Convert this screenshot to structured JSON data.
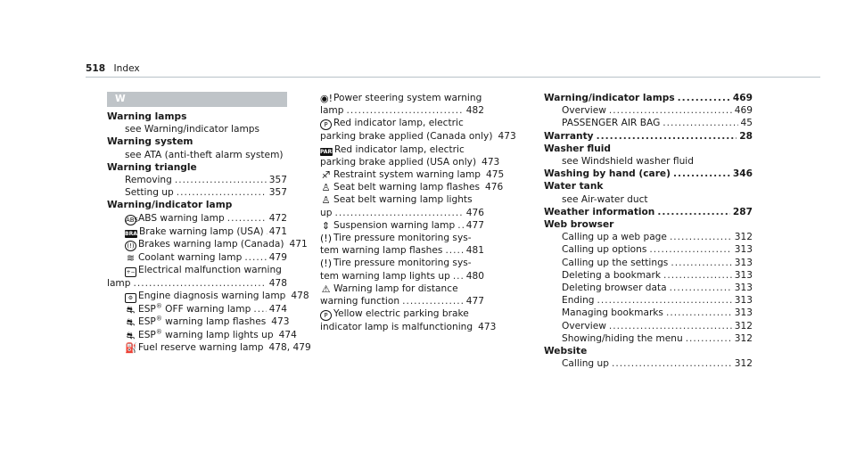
{
  "page": {
    "number": "518",
    "section": "Index"
  },
  "letter": "W",
  "col1": [
    {
      "kind": "head",
      "text": "Warning lamps"
    },
    {
      "kind": "see",
      "text": "see Warning/indicator lamps"
    },
    {
      "kind": "head",
      "text": "Warning system"
    },
    {
      "kind": "see",
      "text": "see ATA (anti-theft alarm system)"
    },
    {
      "kind": "head",
      "text": "Warning triangle"
    },
    {
      "kind": "sub",
      "text": "Removing",
      "page": "357"
    },
    {
      "kind": "sub",
      "text": "Setting up",
      "page": "357"
    },
    {
      "kind": "head",
      "text": "Warning/indicator lamp"
    },
    {
      "kind": "sub",
      "icon": "abs-warning-icon",
      "iconText": "ABS",
      "text": "ABS warning lamp",
      "page": "472"
    },
    {
      "kind": "sub",
      "icon": "brake-warning-icon",
      "iconText": "BRAKE",
      "text": "Brake warning lamp (USA)",
      "page": "471"
    },
    {
      "kind": "sub",
      "icon": "brake-canada-icon",
      "iconText": "(!)",
      "text": "Brakes warning lamp (Canada)",
      "page": "471"
    },
    {
      "kind": "sub",
      "icon": "coolant-icon",
      "iconText": "≋",
      "text": "Coolant warning lamp",
      "page": "479"
    },
    {
      "kind": "wrap",
      "icon": "battery-icon",
      "iconText": "+−",
      "text": "Electrical malfunction warning"
    },
    {
      "kind": "sub",
      "text": "lamp",
      "page": "478",
      "nopad": true
    },
    {
      "kind": "sub",
      "icon": "engine-icon",
      "iconText": "⚙",
      "text": "Engine diagnosis warning lamp",
      "page": "478"
    },
    {
      "kind": "sub",
      "icon": "esp-off-icon",
      "iconText": "⛐",
      "text": "ESP",
      "sup": "®",
      "text2": " OFF warning lamp",
      "page": "474"
    },
    {
      "kind": "sub",
      "icon": "esp-icon",
      "iconText": "⛐",
      "text": "ESP",
      "sup": "®",
      "text2": " warning lamp flashes",
      "page": "473"
    },
    {
      "kind": "sub",
      "icon": "esp-icon",
      "iconText": "⛐",
      "text": "ESP",
      "sup": "®",
      "text2": " warning lamp lights up",
      "page": "474"
    },
    {
      "kind": "sub",
      "icon": "fuel-icon",
      "iconText": "⛽",
      "text": "Fuel reserve warning lamp",
      "page": "478, 479"
    }
  ],
  "col2": [
    {
      "kind": "wrap",
      "icon": "power-steering-icon",
      "iconText": "◉!",
      "text": "Power steering system warning"
    },
    {
      "kind": "line",
      "text": "lamp",
      "page": "482"
    },
    {
      "kind": "wrap",
      "icon": "parking-brake-icon",
      "iconText": "P",
      "text": "Red indicator lamp, electric"
    },
    {
      "kind": "line",
      "text": "parking brake applied (Canada only)",
      "page": "473"
    },
    {
      "kind": "wrap",
      "icon": "park-icon",
      "iconText": "PARK",
      "text": "Red indicator lamp, electric"
    },
    {
      "kind": "line",
      "text": "parking brake applied (USA only)",
      "page": "473"
    },
    {
      "kind": "line",
      "icon": "restraint-icon",
      "iconText": "♐",
      "text": "Restraint system warning lamp",
      "page": "475"
    },
    {
      "kind": "line",
      "icon": "seatbelt-icon",
      "iconText": "♙",
      "text": "Seat belt warning lamp flashes",
      "page": "476"
    },
    {
      "kind": "wrap",
      "icon": "seatbelt-icon",
      "iconText": "♙",
      "text": "Seat belt warning lamp lights"
    },
    {
      "kind": "line",
      "text": "up",
      "page": "476"
    },
    {
      "kind": "line",
      "icon": "suspension-icon",
      "iconText": "⇕",
      "text": "Suspension warning lamp",
      "page": "477"
    },
    {
      "kind": "wrap",
      "icon": "tire-pressure-icon",
      "iconText": "(!)",
      "text": "Tire pressure monitoring sys-"
    },
    {
      "kind": "line",
      "text": "tem warning lamp flashes",
      "page": "481"
    },
    {
      "kind": "wrap",
      "icon": "tire-pressure-icon",
      "iconText": "(!)",
      "text": "Tire pressure monitoring sys-"
    },
    {
      "kind": "line",
      "text": "tem warning lamp lights up",
      "page": "480"
    },
    {
      "kind": "wrap",
      "icon": "distance-warning-icon",
      "iconText": "⚠",
      "text": "Warning lamp for distance"
    },
    {
      "kind": "line",
      "text": "warning function",
      "page": "477"
    },
    {
      "kind": "wrap",
      "icon": "yellow-brake-icon",
      "iconText": "P",
      "text": "Yellow electric parking brake"
    },
    {
      "kind": "line",
      "text": "indicator lamp is malfunctioning",
      "page": "473"
    }
  ],
  "col3": [
    {
      "kind": "head",
      "text": "Warning/indicator lamps",
      "page": "469"
    },
    {
      "kind": "sub",
      "text": "Overview",
      "page": "469"
    },
    {
      "kind": "sub",
      "text": "PASSENGER AIR BAG",
      "page": "45"
    },
    {
      "kind": "head",
      "text": "Warranty",
      "page": "28"
    },
    {
      "kind": "head",
      "text": "Washer fluid"
    },
    {
      "kind": "see",
      "text": "see Windshield washer fluid"
    },
    {
      "kind": "head",
      "text": "Washing by hand (care)",
      "page": "346"
    },
    {
      "kind": "head",
      "text": "Water tank"
    },
    {
      "kind": "see",
      "text": "see Air-water duct"
    },
    {
      "kind": "head",
      "text": "Weather information",
      "page": "287"
    },
    {
      "kind": "head",
      "text": "Web browser"
    },
    {
      "kind": "sub",
      "text": "Calling up a web page",
      "page": "312"
    },
    {
      "kind": "sub",
      "text": "Calling up options",
      "page": "313"
    },
    {
      "kind": "sub",
      "text": "Calling up the settings",
      "page": "313"
    },
    {
      "kind": "sub",
      "text": "Deleting a bookmark",
      "page": "313"
    },
    {
      "kind": "sub",
      "text": "Deleting browser data",
      "page": "313"
    },
    {
      "kind": "sub",
      "text": "Ending",
      "page": "313"
    },
    {
      "kind": "sub",
      "text": "Managing bookmarks",
      "page": "313"
    },
    {
      "kind": "sub",
      "text": "Overview",
      "page": "312"
    },
    {
      "kind": "sub",
      "text": "Showing/hiding the menu",
      "page": "312"
    },
    {
      "kind": "head",
      "text": "Website"
    },
    {
      "kind": "sub",
      "text": "Calling up",
      "page": "312"
    }
  ]
}
